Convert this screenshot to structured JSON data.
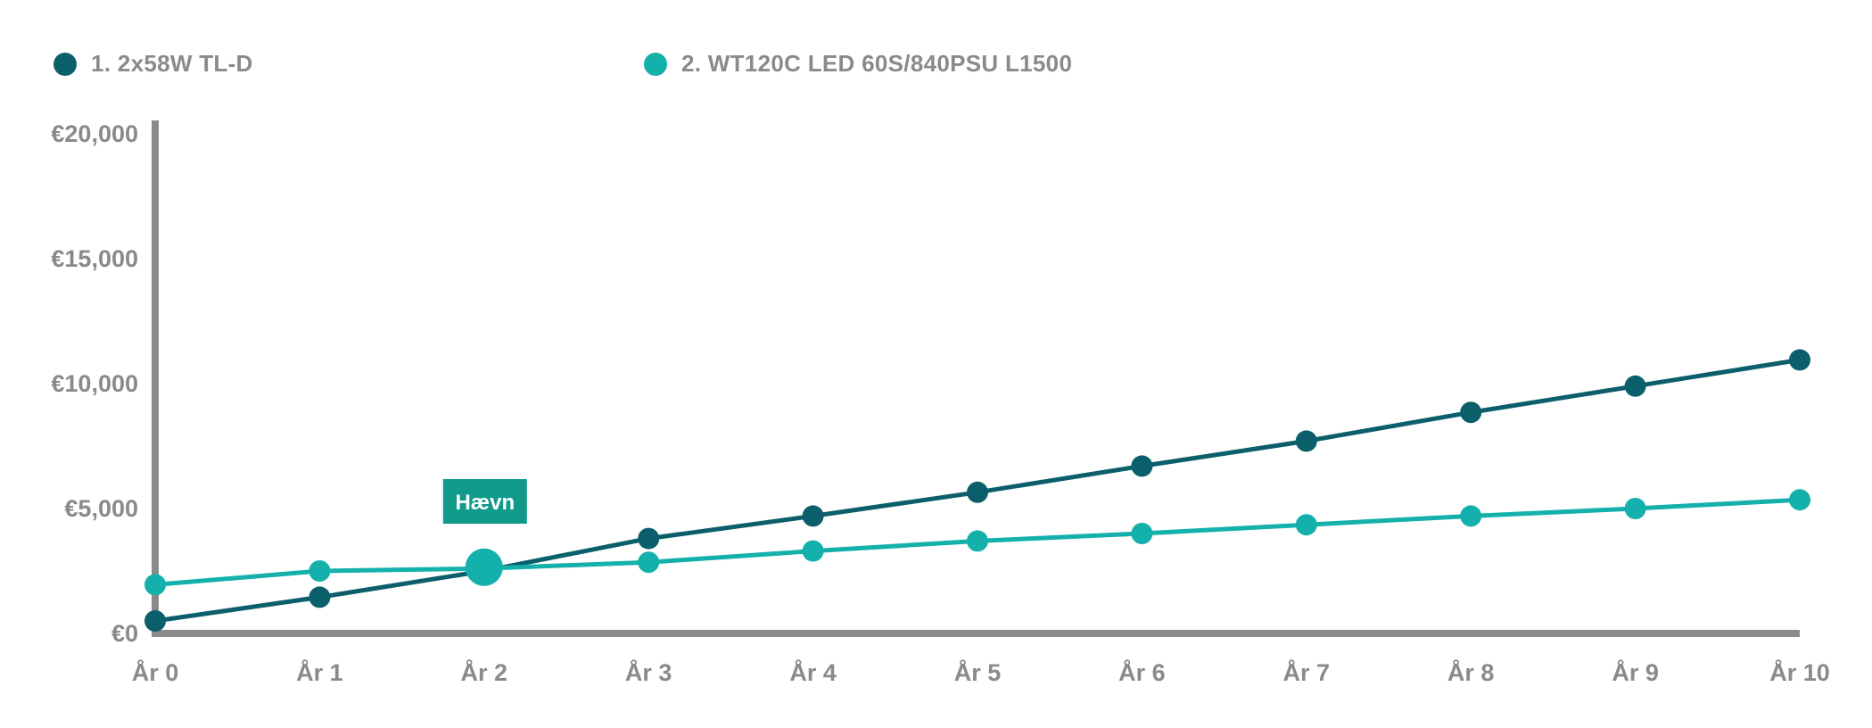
{
  "colors": {
    "series1": "#0b5f6b",
    "series2": "#14b0ab",
    "axis": "#8a8a8a",
    "annotation_bg": "#0f9a8a"
  },
  "chart_data": {
    "type": "line",
    "x": [
      "År 0",
      "År 1",
      "År 2",
      "År 3",
      "År 4",
      "År 5",
      "År 6",
      "År 7",
      "År 8",
      "År 9",
      "År 10"
    ],
    "y_ticks": [
      "€0",
      "€5,000",
      "€10,000",
      "€15,000",
      "€20,000"
    ],
    "ylim": [
      0,
      20000
    ],
    "series": [
      {
        "name": "1. 2x58W TL-D",
        "color": "#0b5f6b",
        "values": [
          500,
          1450,
          2500,
          3800,
          4700,
          5650,
          6700,
          7700,
          8850,
          9900,
          10950
        ]
      },
      {
        "name": "2. WT120C LED 60S/840PSU L1500",
        "color": "#14b0ab",
        "values": [
          1950,
          2500,
          2600,
          2850,
          3300,
          3700,
          4000,
          4350,
          4700,
          5000,
          5350
        ]
      }
    ],
    "annotation": {
      "label": "Hævn",
      "x_index": 2,
      "value": 2650
    },
    "grid": false,
    "legend_position": "top-left"
  }
}
